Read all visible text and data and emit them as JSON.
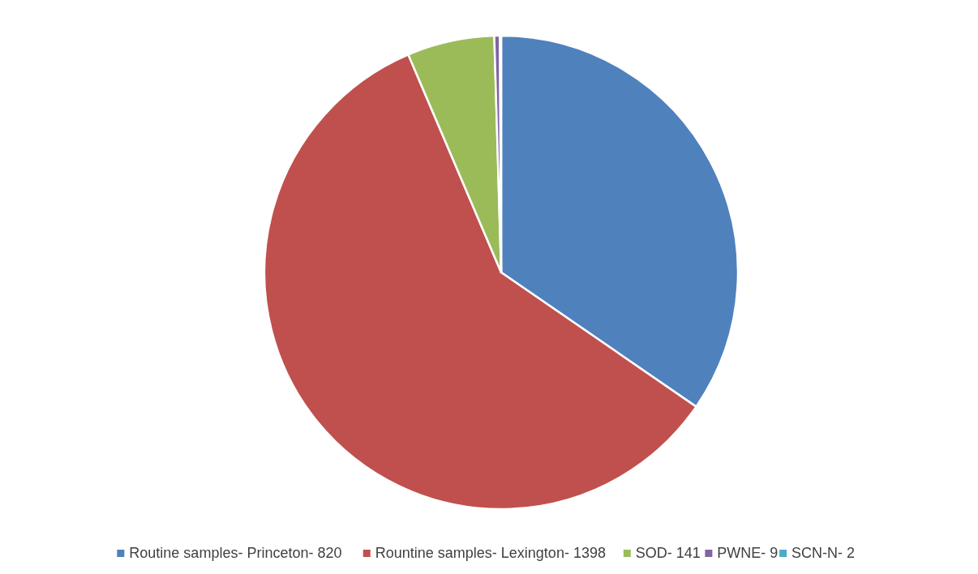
{
  "chart_data": {
    "type": "pie",
    "categories": [
      "Routine samples- Princeton-",
      "Rountine samples- Lexington-",
      "SOD-",
      "PWNE-",
      "SCN-N-"
    ],
    "values": [
      820,
      1398,
      141,
      9,
      2
    ],
    "value_labels": [
      "820",
      "1398",
      "141",
      "9",
      "2"
    ],
    "colors": [
      "#4f81bd",
      "#c0504d",
      "#9bbb59",
      "#8064a2",
      "#4bacc6"
    ],
    "legend": "bottom"
  }
}
